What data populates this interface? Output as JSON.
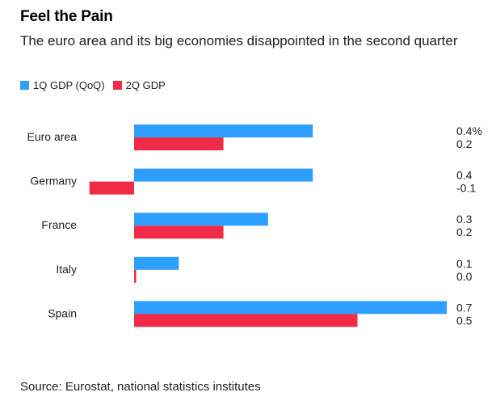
{
  "title": "Feel the Pain",
  "subtitle": "The euro area and its big economies disappointed in the second quarter",
  "source": "Source: Eurostat, national statistics institutes",
  "colors": {
    "series1": "#2e9fff",
    "series2": "#f02b48"
  },
  "chart_data": {
    "type": "bar",
    "orientation": "horizontal",
    "categories": [
      "Euro area",
      "Germany",
      "France",
      "Italy",
      "Spain"
    ],
    "series": [
      {
        "name": "1Q GDP (QoQ)",
        "values": [
          0.4,
          0.4,
          0.3,
          0.1,
          0.7
        ],
        "labels": [
          "0.4%",
          "0.4",
          "0.3",
          "0.1",
          "0.7"
        ]
      },
      {
        "name": "2Q GDP",
        "values": [
          0.2,
          -0.1,
          0.2,
          0.0,
          0.5
        ],
        "labels": [
          "0.2",
          "-0.1",
          "0.2",
          "0.0",
          "0.5"
        ]
      }
    ],
    "xlim": [
      -0.1,
      0.7
    ],
    "grid": false,
    "legend": "top-left"
  }
}
